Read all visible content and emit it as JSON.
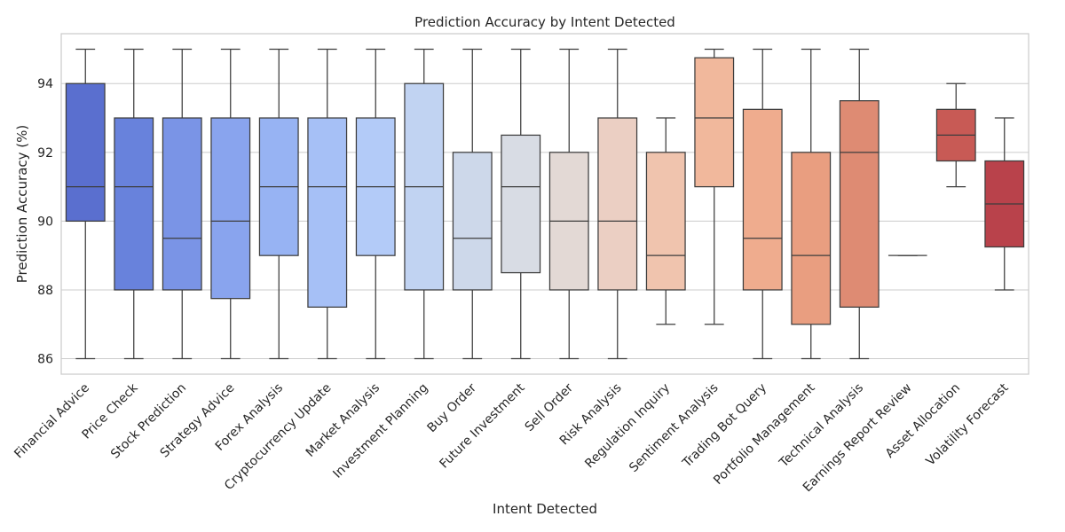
{
  "chart_data": {
    "type": "box",
    "title": "Prediction Accuracy by Intent Detected",
    "xlabel": "Intent Detected",
    "ylabel": "Prediction Accuracy (%)",
    "ylim": [
      85.55,
      95.45
    ],
    "yticks": [
      86,
      88,
      90,
      92,
      94
    ],
    "grid": "horizontal",
    "palette": "coolwarm",
    "boxes": [
      {
        "category": "Financial Advice",
        "whisker_low": 86,
        "q1": 90,
        "median": 91,
        "q3": 94,
        "whisker_high": 95,
        "color": "#5a6fcf"
      },
      {
        "category": "Price Check",
        "whisker_low": 86,
        "q1": 88,
        "median": 91,
        "q3": 93,
        "whisker_high": 95,
        "color": "#6882dc"
      },
      {
        "category": "Stock Prediction",
        "whisker_low": 86,
        "q1": 88,
        "median": 89.5,
        "q3": 93,
        "whisker_high": 95,
        "color": "#7a94e6"
      },
      {
        "category": "Strategy Advice",
        "whisker_low": 86,
        "q1": 87.75,
        "median": 90,
        "q3": 93,
        "whisker_high": 95,
        "color": "#89a4ee"
      },
      {
        "category": "Forex Analysis",
        "whisker_low": 86,
        "q1": 89,
        "median": 91,
        "q3": 93,
        "whisker_high": 95,
        "color": "#97b3f3"
      },
      {
        "category": "Cryptocurrency Update",
        "whisker_low": 86,
        "q1": 87.5,
        "median": 91,
        "q3": 93,
        "whisker_high": 95,
        "color": "#a6c0f6"
      },
      {
        "category": "Market Analysis",
        "whisker_low": 86,
        "q1": 89,
        "median": 91,
        "q3": 93,
        "whisker_high": 95,
        "color": "#b3cbf8"
      },
      {
        "category": "Investment Planning",
        "whisker_low": 86,
        "q1": 88,
        "median": 91,
        "q3": 94,
        "whisker_high": 95,
        "color": "#c1d3f2"
      },
      {
        "category": "Buy Order",
        "whisker_low": 86,
        "q1": 88,
        "median": 89.5,
        "q3": 92,
        "whisker_high": 95,
        "color": "#cdd8ea"
      },
      {
        "category": "Future Investment",
        "whisker_low": 86,
        "q1": 88.5,
        "median": 91,
        "q3": 92.5,
        "whisker_high": 95,
        "color": "#d8dce4"
      },
      {
        "category": "Sell Order",
        "whisker_low": 86,
        "q1": 88,
        "median": 90,
        "q3": 92,
        "whisker_high": 95,
        "color": "#e3d9d5"
      },
      {
        "category": "Risk Analysis",
        "whisker_low": 86,
        "q1": 88,
        "median": 90,
        "q3": 93,
        "whisker_high": 95,
        "color": "#ebcfc3"
      },
      {
        "category": "Regulation Inquiry",
        "whisker_low": 87,
        "q1": 88,
        "median": 89,
        "q3": 92,
        "whisker_high": 93,
        "color": "#f0c4ae"
      },
      {
        "category": "Sentiment Analysis",
        "whisker_low": 87,
        "q1": 91,
        "median": 93,
        "q3": 94.75,
        "whisker_high": 95,
        "color": "#f1b89c"
      },
      {
        "category": "Trading Bot Query",
        "whisker_low": 86,
        "q1": 88,
        "median": 89.5,
        "q3": 93.25,
        "whisker_high": 95,
        "color": "#efac8e"
      },
      {
        "category": "Portfolio Management",
        "whisker_low": 86,
        "q1": 87,
        "median": 89,
        "q3": 92,
        "whisker_high": 95,
        "color": "#e99e80"
      },
      {
        "category": "Technical Analysis",
        "whisker_low": 86,
        "q1": 87.5,
        "median": 92,
        "q3": 93.5,
        "whisker_high": 95,
        "color": "#de8b73"
      },
      {
        "category": "Earnings Report Review",
        "whisker_low": 89,
        "q1": 89,
        "median": 89,
        "q3": 89,
        "whisker_high": 89,
        "color": "#d3765f"
      },
      {
        "category": "Asset Allocation",
        "whisker_low": 91,
        "q1": 91.75,
        "median": 92.5,
        "q3": 93.25,
        "whisker_high": 94,
        "color": "#c85a55"
      },
      {
        "category": "Volatility Forecast",
        "whisker_low": 88,
        "q1": 89.25,
        "median": 90.5,
        "q3": 91.75,
        "whisker_high": 93,
        "color": "#b9424b"
      }
    ]
  }
}
